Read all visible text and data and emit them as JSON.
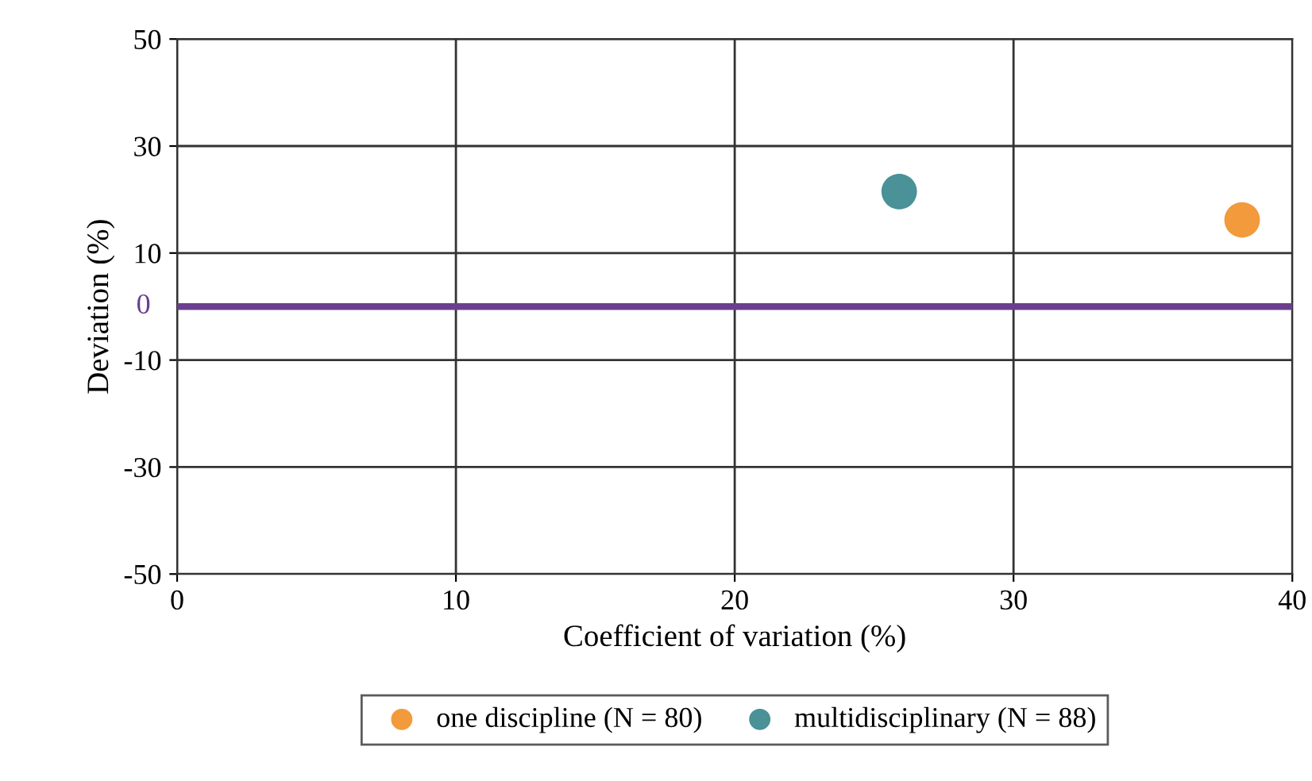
{
  "chart_data": {
    "type": "scatter",
    "xlabel": "Coefficient of variation (%)",
    "ylabel": "Deviation (%)",
    "series": [
      {
        "name": "one discipline (N = 80)",
        "color": "#f29a3c",
        "x": [
          38.2
        ],
        "values": [
          16.2
        ]
      },
      {
        "name": "multidisciplinary (N = 88)",
        "color": "#4a9198",
        "x": [
          25.9
        ],
        "values": [
          21.5
        ]
      }
    ],
    "xlim": [
      0,
      40
    ],
    "xticks": [
      0,
      10,
      20,
      30,
      40
    ],
    "ylim": [
      -50,
      50
    ],
    "yticks": [
      -50,
      -30,
      -10,
      10,
      30,
      50
    ],
    "ref_lines": [
      {
        "axis": "y",
        "value": 0,
        "label": "0",
        "color": "#6b3f8e"
      }
    ],
    "grid": true,
    "legend": "bottom",
    "marker": "circle"
  }
}
